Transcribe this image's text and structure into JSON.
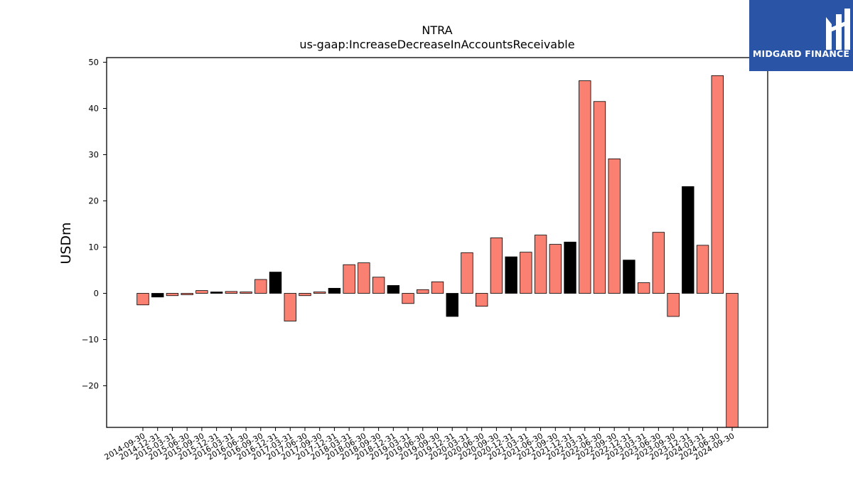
{
  "chart_data": {
    "type": "bar",
    "title": "NTRA",
    "subtitle": "us-gaap:IncreaseDecreaseInAccountsReceivable",
    "ylabel": "USDm",
    "ylim": [
      -29,
      51
    ],
    "yticks": [
      -20,
      -10,
      0,
      10,
      20,
      30,
      40,
      50
    ],
    "categories": [
      "2014-09-30",
      "2014-12-31",
      "2015-03-31",
      "2015-06-30",
      "2015-09-30",
      "2015-12-31",
      "2016-03-31",
      "2016-06-30",
      "2016-09-30",
      "2016-12-31",
      "2017-03-31",
      "2017-06-30",
      "2017-09-30",
      "2017-12-31",
      "2018-03-31",
      "2018-06-30",
      "2018-09-30",
      "2018-12-31",
      "2019-03-31",
      "2019-06-30",
      "2019-09-30",
      "2019-12-31",
      "2020-03-31",
      "2020-06-30",
      "2020-09-30",
      "2020-12-31",
      "2021-03-31",
      "2021-06-30",
      "2021-09-30",
      "2021-12-31",
      "2022-03-31",
      "2022-06-30",
      "2022-09-30",
      "2022-12-31",
      "2023-03-31",
      "2023-06-30",
      "2023-09-30",
      "2023-12-31",
      "2024-03-31",
      "2024-06-30",
      "2024-09-30"
    ],
    "values": [
      -2.5,
      -0.8,
      -0.5,
      -0.3,
      0.6,
      0.3,
      0.4,
      0.3,
      3.0,
      4.6,
      -6.0,
      -0.5,
      0.3,
      1.1,
      6.2,
      6.6,
      3.5,
      1.7,
      -2.2,
      0.8,
      2.5,
      -5.0,
      8.8,
      -2.8,
      12.0,
      7.9,
      8.9,
      12.6,
      10.6,
      11.1,
      46.0,
      41.5,
      29.1,
      7.2,
      2.3,
      13.2,
      -5.0,
      23.1,
      10.4,
      47.1,
      -29.0
    ],
    "highlight_quarter": "12-31",
    "colors": {
      "default": "#fa8072",
      "highlight": "#000000",
      "edge": "#000000"
    },
    "grid": false
  },
  "logo": {
    "text": "MIDGARD FINANCE",
    "color": "#2a55a6"
  }
}
